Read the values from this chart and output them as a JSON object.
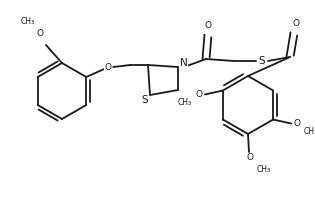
{
  "background": "#ffffff",
  "line_color": "#1a1a1a",
  "line_width": 1.3,
  "font_size": 6.5,
  "figsize": [
    3.15,
    2.13
  ],
  "dpi": 100,
  "xlim": [
    0,
    315
  ],
  "ylim": [
    0,
    213
  ]
}
